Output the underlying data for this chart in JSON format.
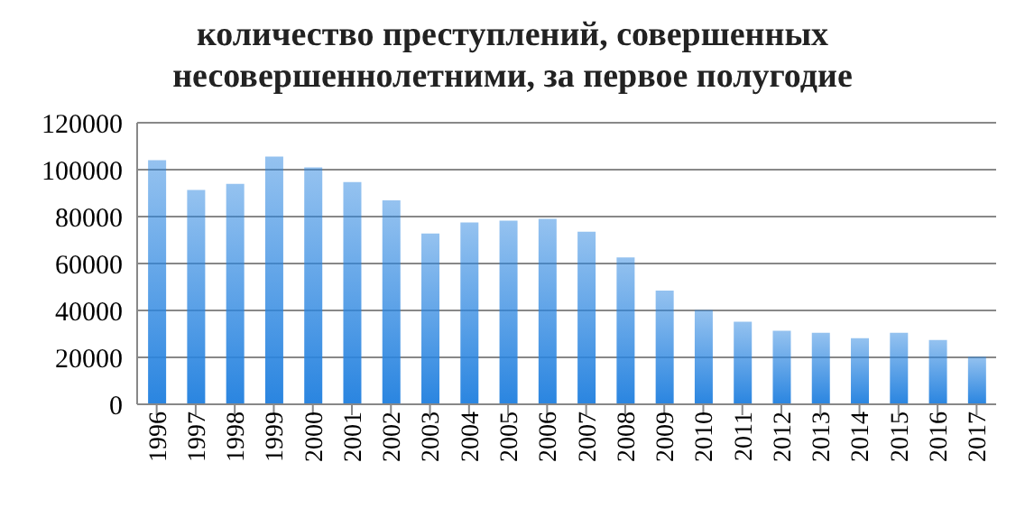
{
  "chart_data": {
    "type": "bar",
    "title": "количество преступлений, совершенных несовершеннолетними, за первое полугодие",
    "categories": [
      "1996",
      "1997",
      "1998",
      "1999",
      "2000",
      "2001",
      "2002",
      "2003",
      "2004",
      "2005",
      "2006",
      "2007",
      "2008",
      "2009",
      "2010",
      "2011",
      "2012",
      "2013",
      "2014",
      "2015",
      "2016",
      "2017"
    ],
    "values": [
      104000,
      91300,
      93900,
      105600,
      101000,
      94700,
      86900,
      72800,
      77500,
      78300,
      79000,
      73600,
      62600,
      48500,
      40200,
      35200,
      31300,
      30500,
      28200,
      30500,
      27400,
      20300
    ],
    "color": "#2a85e0",
    "ylim": [
      0,
      120000
    ],
    "yticks": [
      0,
      20000,
      40000,
      60000,
      80000,
      100000,
      120000
    ],
    "grid": "y",
    "legend": false
  }
}
